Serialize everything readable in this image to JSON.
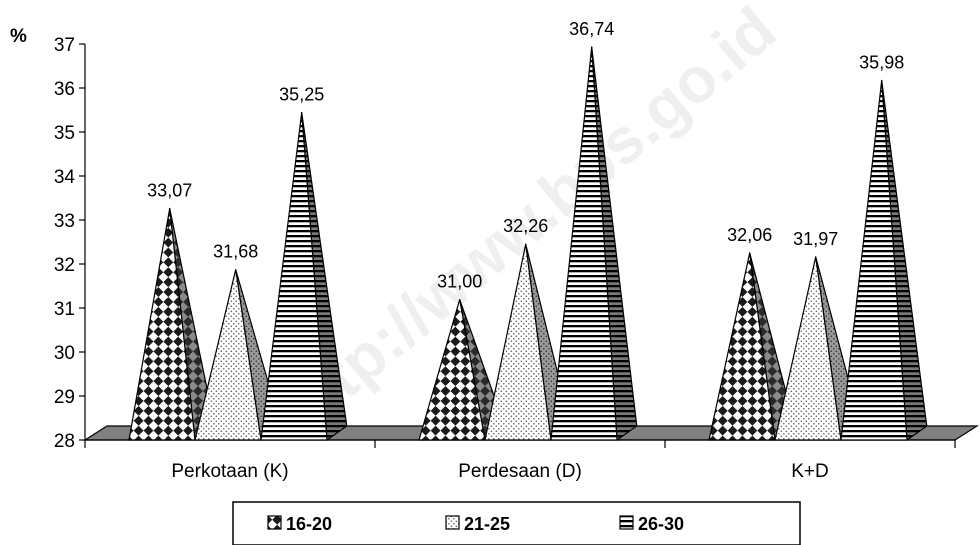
{
  "watermark": "http://www.bps.go.id",
  "chart_data": {
    "type": "bar",
    "subtype": "3d-cone",
    "unit_label": "%",
    "categories": [
      "Perkotaan (K)",
      "Perdesaan (D)",
      "K+D"
    ],
    "series": [
      {
        "name": "16-20",
        "values": [
          33.07,
          31.0,
          32.06
        ],
        "labels": [
          "33,07",
          "31,00",
          "32,06"
        ],
        "pattern": "diamond-checker"
      },
      {
        "name": "21-25",
        "values": [
          31.68,
          32.26,
          31.97
        ],
        "labels": [
          "31,68",
          "32,26",
          "31,97"
        ],
        "pattern": "dots"
      },
      {
        "name": "26-30",
        "values": [
          35.25,
          36.74,
          35.98
        ],
        "labels": [
          "35,25",
          "36,74",
          "35,98"
        ],
        "pattern": "horizontal-stripes"
      }
    ],
    "ylim": [
      28,
      37
    ],
    "yticks": [
      "28",
      "29",
      "30",
      "31",
      "32",
      "33",
      "34",
      "35",
      "36",
      "37"
    ],
    "legend_position": "bottom",
    "grid": false
  }
}
